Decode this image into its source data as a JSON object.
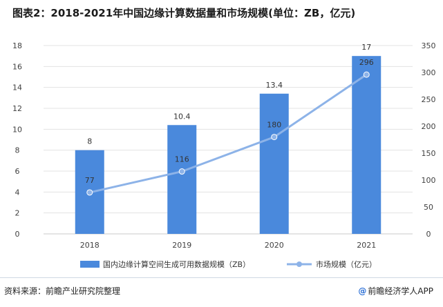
{
  "title": "图表2：2018-2021年中国边缘计算数据量和市场规模(单位：ZB，亿元)",
  "chart_data": {
    "type": "bar",
    "categories": [
      "2018",
      "2019",
      "2020",
      "2021"
    ],
    "series": [
      {
        "name": "国内边缘计算空间生成可用数据规模（ZB）",
        "type": "bar",
        "axis": "left",
        "color": "#4a89dc",
        "values": [
          8,
          10.4,
          13.4,
          17
        ],
        "labels": [
          "8",
          "10.4",
          "13.4",
          "17"
        ]
      },
      {
        "name": "市场规模（亿元）",
        "type": "line",
        "axis": "right",
        "color": "#8db3e8",
        "values": [
          77,
          116,
          180,
          296
        ],
        "labels": [
          "77",
          "116",
          "180",
          "296"
        ]
      }
    ],
    "y_left": {
      "min": 0,
      "max": 18,
      "ticks": [
        0,
        2,
        4,
        6,
        8,
        10,
        12,
        14,
        16,
        18
      ]
    },
    "y_right": {
      "min": 0,
      "max": 350,
      "ticks": [
        0,
        50,
        100,
        150,
        200,
        250,
        300,
        350
      ]
    },
    "legend_position": "bottom",
    "grid": true
  },
  "footer": {
    "source": "资料来源：前瞻产业研究院整理",
    "brand_logo": "@",
    "brand": "前瞻经济学人APP"
  }
}
